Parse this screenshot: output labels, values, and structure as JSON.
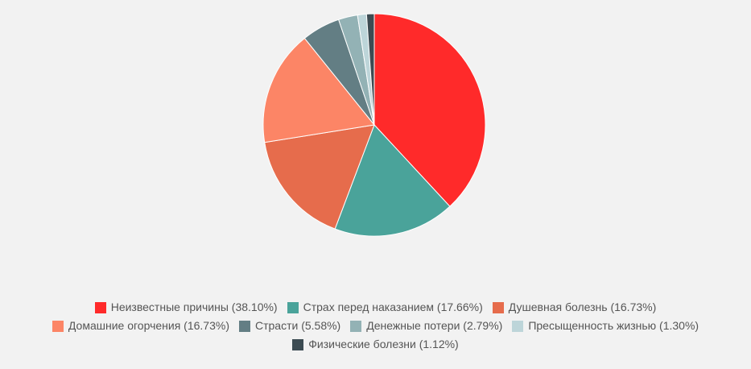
{
  "chart_data": {
    "type": "pie",
    "slices": [
      {
        "label": "Неизвестные причины (38.10%)",
        "value": 38.1,
        "color": "#ff2a2a"
      },
      {
        "label": "Страх перед наказанием (17.66%)",
        "value": 17.66,
        "color": "#4aa39a"
      },
      {
        "label": "Душевная болезнь (16.73%)",
        "value": 16.73,
        "color": "#e66c4c"
      },
      {
        "label": "Домашние огорчения (16.73%)",
        "value": 16.73,
        "color": "#fc8566"
      },
      {
        "label": "Страсти (5.58%)",
        "value": 5.58,
        "color": "#637e84"
      },
      {
        "label": "Денежные потери (2.79%)",
        "value": 2.79,
        "color": "#93b2b5"
      },
      {
        "label": "Пресыщенность жизнью (1.30%)",
        "value": 1.3,
        "color": "#bdd5d9"
      },
      {
        "label": "Физические болезни (1.12%)",
        "value": 1.12,
        "color": "#3c4b52"
      }
    ],
    "legend_position": "bottom"
  }
}
